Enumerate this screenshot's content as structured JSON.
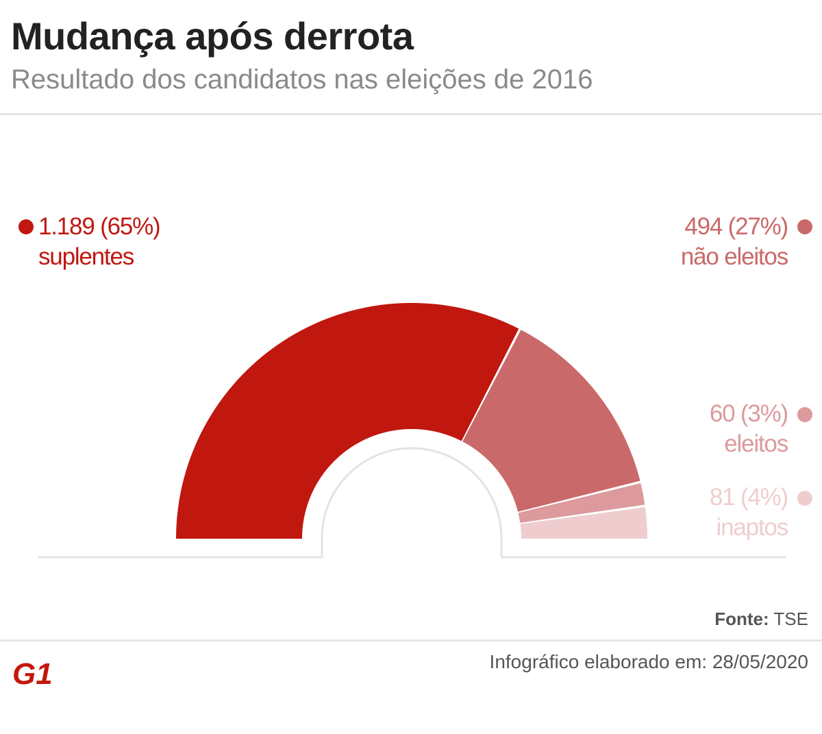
{
  "header": {
    "title": "Mudança após derrota",
    "subtitle": "Resultado dos candidatos nas eleições de 2016"
  },
  "chart_data": {
    "type": "pie",
    "variant": "semicircle-donut",
    "slices": [
      {
        "value": 1189,
        "percent_label": "1.189 (65%)",
        "label": "suplentes",
        "color": "#c0170f"
      },
      {
        "value": 494,
        "percent_label": "494 (27%)",
        "label": "não eleitos",
        "color": "#c9696a"
      },
      {
        "value": 60,
        "percent_label": "60 (3%)",
        "label": "eleitos",
        "color": "#dc9a9c"
      },
      {
        "value": 81,
        "percent_label": "81 (4%)",
        "label": "inaptos",
        "color": "#efcdce"
      }
    ]
  },
  "footer": {
    "source_label": "Fonte:",
    "source_value": "TSE",
    "created": "Infográfico elaborado em: 28/05/2020",
    "logo_text": "G1",
    "brand_color": "#c4170c"
  }
}
